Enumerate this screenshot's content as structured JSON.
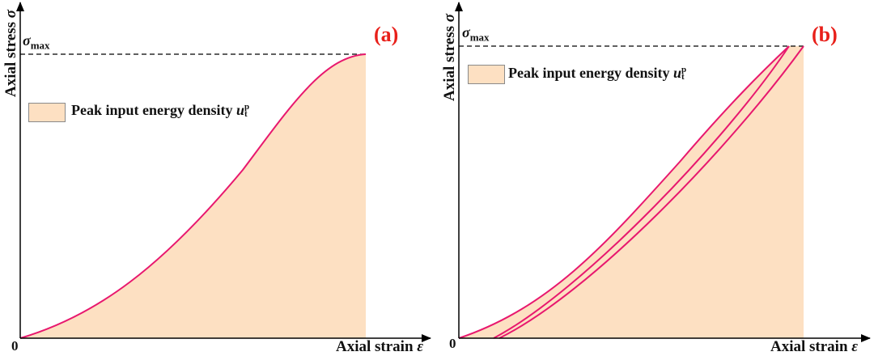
{
  "panels": [
    {
      "tag": "(a)",
      "ylabel": "Axial stress",
      "ysymbol": "σ",
      "xlabel": "Axial strain",
      "xsymbol": "ε",
      "origin": "0",
      "peak_label": "σ",
      "peak_sub": "max",
      "legend": "Peak input energy density",
      "legend_sym": "u",
      "legend_sub": "t",
      "legend_sup": "p"
    },
    {
      "tag": "(b)",
      "ylabel": "Axial stress",
      "ysymbol": "σ",
      "xlabel": "Axial strain",
      "xsymbol": "ε",
      "origin": "0",
      "peak_label": "σ",
      "peak_sub": "max",
      "legend": "Peak input energy density",
      "legend_sym": "u",
      "legend_sub": "t",
      "legend_sup": "p"
    }
  ],
  "colors": {
    "curve": "#e8186e",
    "fill": "#fde0c2",
    "tag": "#e8201a"
  }
}
